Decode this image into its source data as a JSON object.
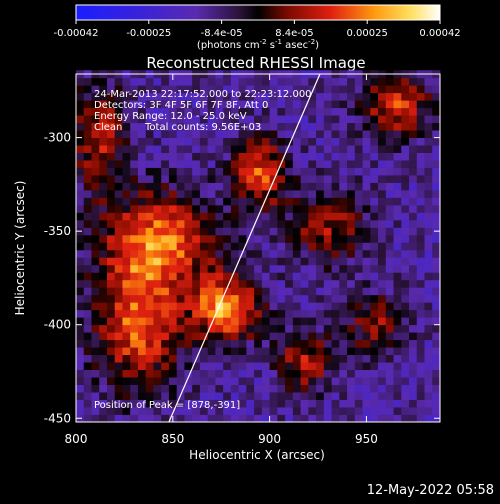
{
  "chart_data": {
    "type": "heatmap",
    "title": "Reconstructed RHESSI Image",
    "xlabel": "Heliocentric X (arcsec)",
    "ylabel": "Heliocentric Y (arcsec)",
    "xlim": [
      800,
      988
    ],
    "ylim": [
      -452,
      -266
    ],
    "x_ticks": [
      800,
      850,
      900,
      950
    ],
    "y_ticks": [
      -300,
      -350,
      -400,
      -450
    ],
    "colorbar": {
      "ticks": [
        "-0.00042",
        "-0.00025",
        "-8.4e-05",
        "8.4e-05",
        "0.00025",
        "0.00042"
      ],
      "range": [
        -0.00042,
        0.00042
      ],
      "unit_text": "(photons cm",
      "unit_sup1": "-2",
      "unit_mid1": " s",
      "unit_sup2": "-1",
      "unit_mid2": " asec",
      "unit_sup3": "-2",
      "unit_end": ")"
    },
    "annotations": [
      "24-Mar-2013 22:17:52.000 to 22:23:12.000",
      "Detectors: 3F 4F 5F 6F 7F 8F, Att 0",
      "Energy Range: 12.0 - 25.0 keV",
      "Clean",
      "Total counts: 9.56E+03"
    ],
    "peak_label": "Position of Peak = [878,-391]",
    "peak": [
      878,
      -391
    ],
    "limb_line": {
      "x": [
        848,
        926
      ],
      "y": [
        -452,
        -266
      ]
    },
    "sources": [
      {
        "x": 878,
        "y": -391,
        "value": 0.00042,
        "sx": 12,
        "sy": 12
      },
      {
        "x": 843,
        "y": -355,
        "value": 0.00036,
        "sx": 20,
        "sy": 18
      },
      {
        "x": 832,
        "y": -400,
        "value": 0.00033,
        "sx": 16,
        "sy": 24
      },
      {
        "x": 895,
        "y": -318,
        "value": 0.00032,
        "sx": 10,
        "sy": 14
      },
      {
        "x": 965,
        "y": -282,
        "value": 0.0003,
        "sx": 12,
        "sy": 12
      },
      {
        "x": 812,
        "y": -300,
        "value": 0.00026,
        "sx": 10,
        "sy": 20
      },
      {
        "x": 930,
        "y": -348,
        "value": 0.00022,
        "sx": 14,
        "sy": 14
      },
      {
        "x": 918,
        "y": -420,
        "value": 0.00024,
        "sx": 10,
        "sy": 12
      },
      {
        "x": 955,
        "y": -400,
        "value": 0.0002,
        "sx": 12,
        "sy": 12
      }
    ]
  },
  "footer": {
    "timestamp": "12-May-2022 05:58"
  }
}
